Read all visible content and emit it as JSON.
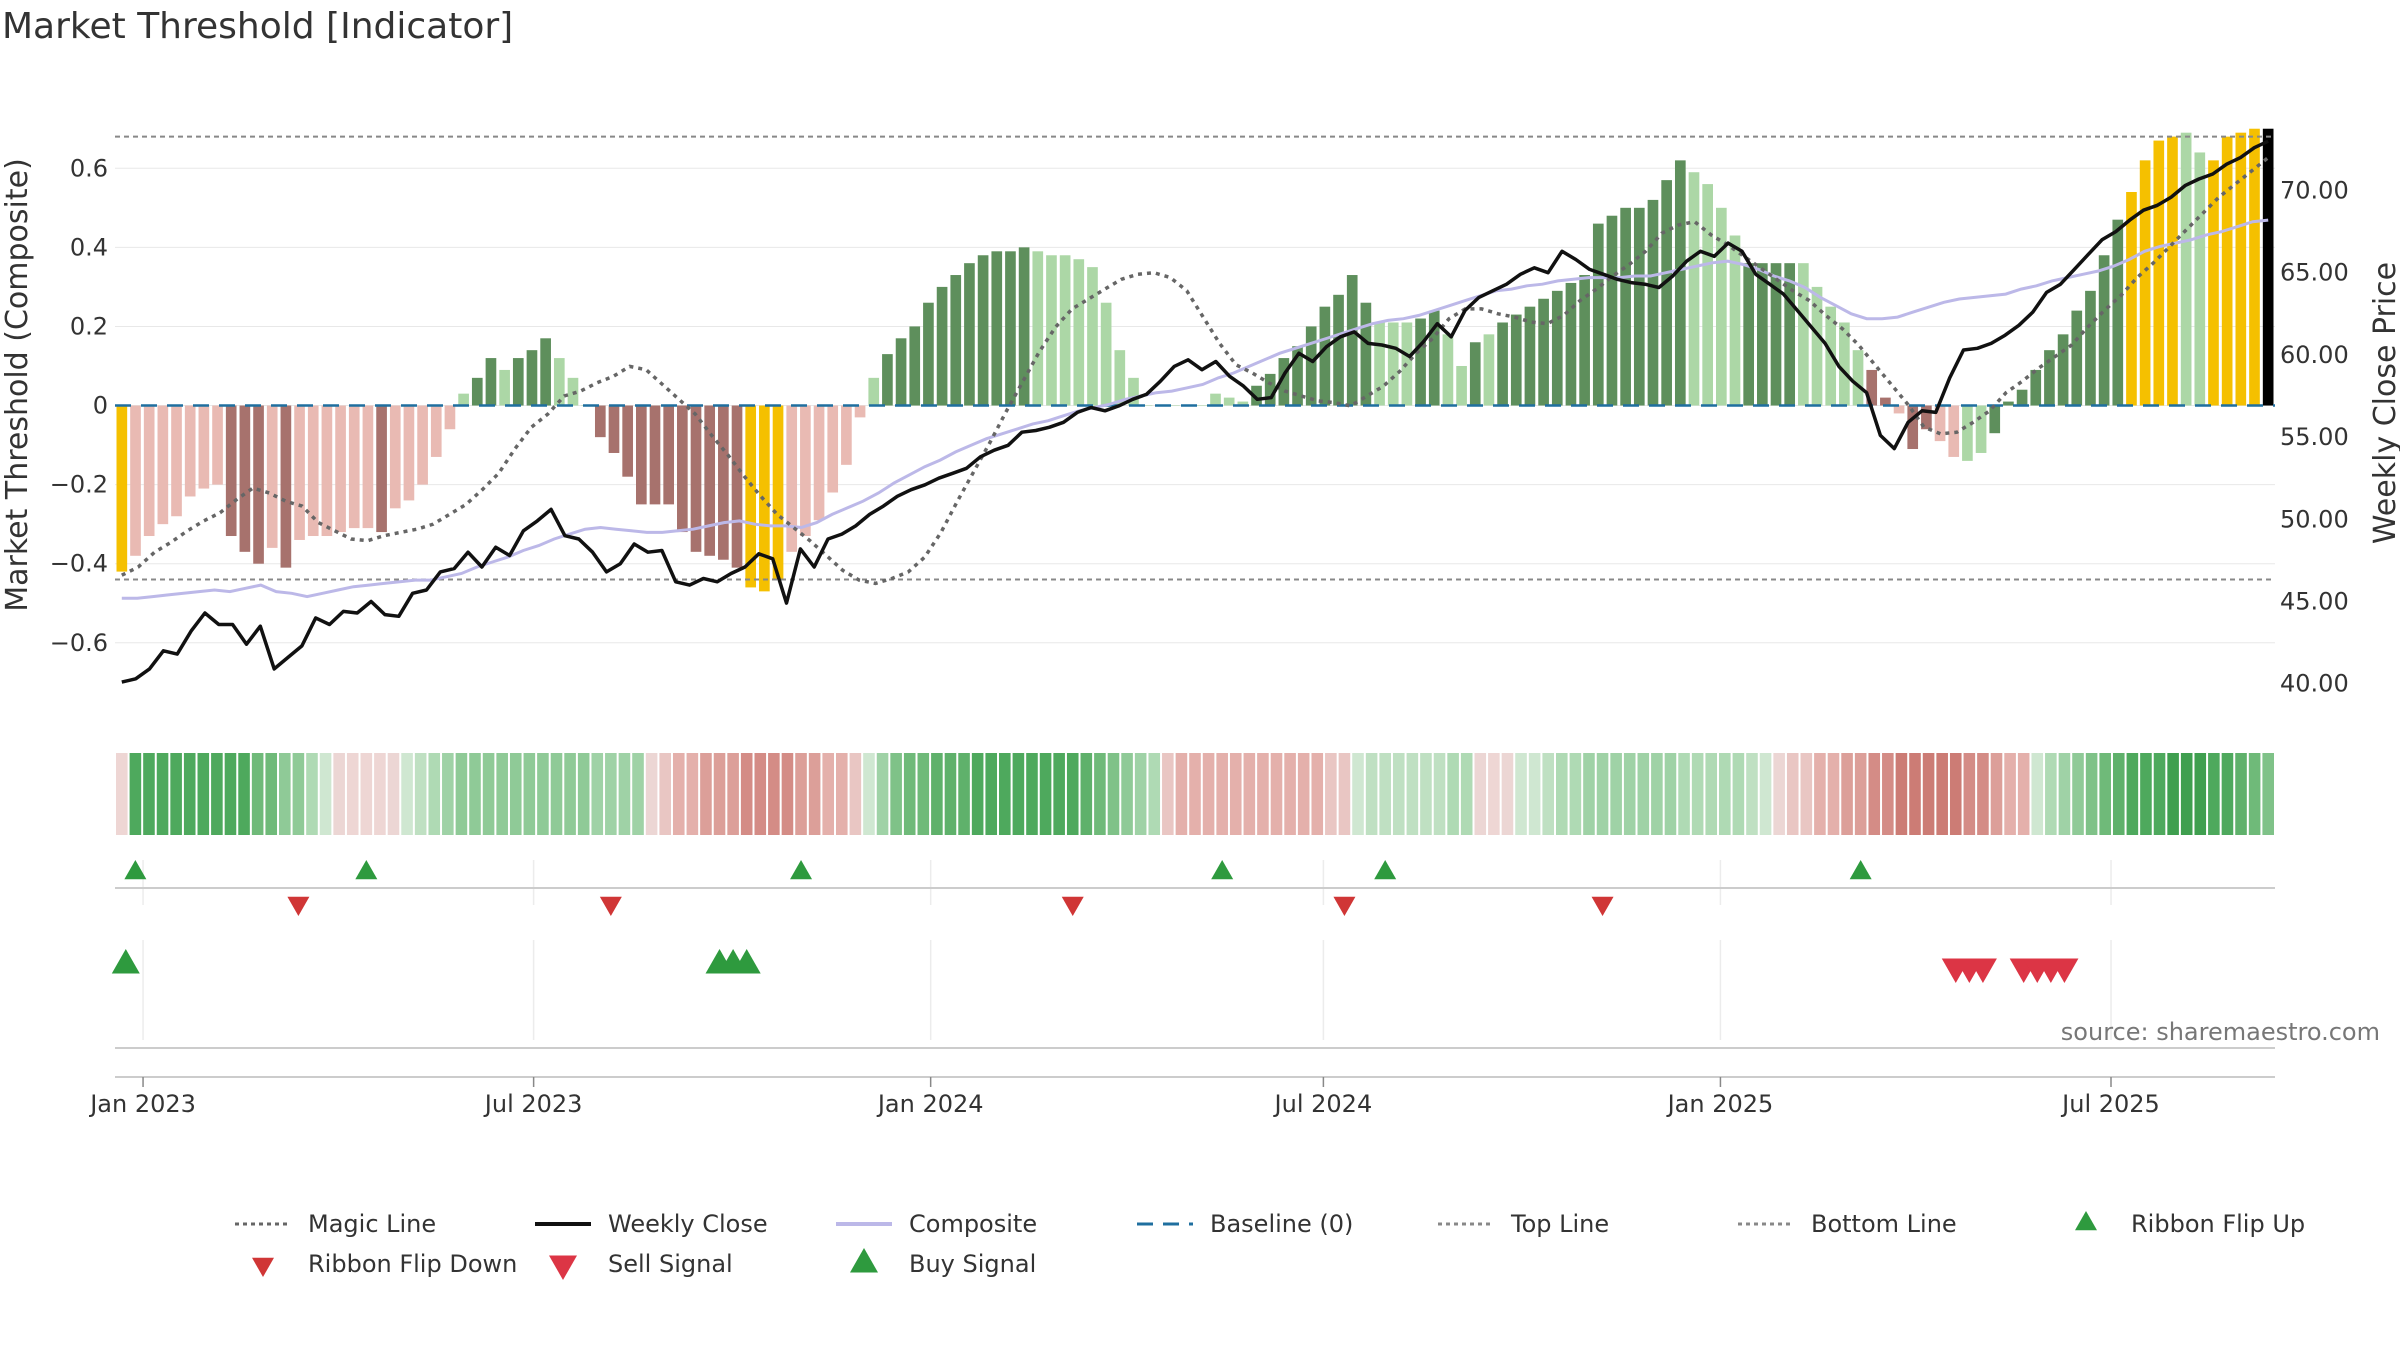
{
  "chart_data": {
    "type": "bar",
    "title": "Market Threshold [Indicator]",
    "ylabel": "Market Threshold (Composite)",
    "y2label": "Weekly Close Price",
    "xlabel": "",
    "ylim": [
      -0.77,
      0.76
    ],
    "y2lim": [
      38.4,
      75.2
    ],
    "y_ticks": [
      {
        "v": 0.6,
        "label": "0.6"
      },
      {
        "v": 0.4,
        "label": "0.4"
      },
      {
        "v": 0.2,
        "label": "0.2"
      },
      {
        "v": 0,
        "label": "0"
      },
      {
        "v": -0.2,
        "label": "−0.2"
      },
      {
        "v": -0.4,
        "label": "−0.4"
      },
      {
        "v": -0.6,
        "label": "−0.6"
      }
    ],
    "y2_ticks": [
      {
        "v": 70,
        "label": "70.00"
      },
      {
        "v": 65,
        "label": "65.00"
      },
      {
        "v": 60,
        "label": "60.00"
      },
      {
        "v": 55,
        "label": "55.00"
      },
      {
        "v": 50,
        "label": "50.00"
      },
      {
        "v": 45,
        "label": "45.00"
      },
      {
        "v": 40,
        "label": "40.00"
      }
    ],
    "x_start": "2022-12-19",
    "x_end": "2025-09-15",
    "x_ticks": [
      {
        "date": "2023-01-01",
        "label": "Jan 2023"
      },
      {
        "date": "2023-07-01",
        "label": "Jul 2023"
      },
      {
        "date": "2024-01-01",
        "label": "Jan 2024"
      },
      {
        "date": "2024-07-01",
        "label": "Jul 2024"
      },
      {
        "date": "2025-01-01",
        "label": "Jan 2025"
      },
      {
        "date": "2025-07-01",
        "label": "Jul 2025"
      }
    ],
    "top_line": 0.68,
    "bottom_line": -0.44,
    "baseline": 0,
    "composite_bars": [
      -0.42,
      -0.38,
      -0.33,
      -0.3,
      -0.28,
      -0.23,
      -0.21,
      -0.2,
      -0.33,
      -0.37,
      -0.4,
      -0.36,
      -0.41,
      -0.34,
      -0.33,
      -0.33,
      -0.32,
      -0.31,
      -0.31,
      -0.32,
      -0.26,
      -0.24,
      -0.2,
      -0.13,
      -0.06,
      0.03,
      0.07,
      0.12,
      0.09,
      0.12,
      0.14,
      0.17,
      0.12,
      0.07,
      0,
      -0.08,
      -0.12,
      -0.18,
      -0.25,
      -0.25,
      -0.25,
      -0.32,
      -0.37,
      -0.38,
      -0.39,
      -0.41,
      -0.46,
      -0.47,
      -0.44,
      -0.37,
      -0.33,
      -0.29,
      -0.22,
      -0.15,
      -0.03,
      0.07,
      0.13,
      0.17,
      0.2,
      0.26,
      0.3,
      0.33,
      0.36,
      0.38,
      0.39,
      0.39,
      0.4,
      0.39,
      0.38,
      0.38,
      0.37,
      0.35,
      0.26,
      0.14,
      0.07,
      0,
      0,
      0,
      0,
      0,
      0.03,
      0.02,
      0.01,
      0.05,
      0.08,
      0.12,
      0.15,
      0.2,
      0.25,
      0.28,
      0.33,
      0.26,
      0.21,
      0.21,
      0.21,
      0.22,
      0.24,
      0.18,
      0.1,
      0.16,
      0.18,
      0.21,
      0.23,
      0.25,
      0.27,
      0.29,
      0.31,
      0.33,
      0.46,
      0.48,
      0.5,
      0.5,
      0.52,
      0.57,
      0.62,
      0.59,
      0.56,
      0.5,
      0.43,
      0.36,
      0.36,
      0.36,
      0.36,
      0.36,
      0.3,
      0.25,
      0.21,
      0.14,
      0.09,
      0.02,
      -0.02,
      -0.11,
      -0.06,
      -0.09,
      -0.13,
      -0.14,
      -0.12,
      -0.07,
      0.01,
      0.04,
      0.09,
      0.14,
      0.18,
      0.24,
      0.29,
      0.38,
      0.47,
      0.54,
      0.62,
      0.67,
      0.68,
      0.69,
      0.64,
      0.62,
      0.68,
      0.69,
      0.7,
      0.7
    ],
    "bar_colors": [
      "gold",
      "lpink",
      "lpink",
      "lpink",
      "lpink",
      "lpink",
      "lpink",
      "lpink",
      "dred",
      "dred",
      "dred",
      "lpink",
      "dred",
      "lpink",
      "lpink",
      "lpink",
      "lpink",
      "lpink",
      "lpink",
      "dred",
      "lpink",
      "lpink",
      "lpink",
      "lpink",
      "lpink",
      "lgreen",
      "dgreen",
      "dgreen",
      "lgreen",
      "dgreen",
      "dgreen",
      "dgreen",
      "lgreen",
      "lgreen",
      "lgreen",
      "dred",
      "dred",
      "dred",
      "dred",
      "dred",
      "dred",
      "dred",
      "dred",
      "dred",
      "dred",
      "dred",
      "gold",
      "gold",
      "gold",
      "lpink",
      "lpink",
      "lpink",
      "lpink",
      "lpink",
      "lpink",
      "lgreen",
      "dgreen",
      "dgreen",
      "dgreen",
      "dgreen",
      "dgreen",
      "dgreen",
      "dgreen",
      "dgreen",
      "dgreen",
      "dgreen",
      "dgreen",
      "lgreen",
      "lgreen",
      "lgreen",
      "lgreen",
      "lgreen",
      "lgreen",
      "lgreen",
      "lgreen",
      "lgreen",
      "lgreen",
      "lgreen",
      "lgreen",
      "lgreen",
      "lgreen",
      "lgreen",
      "lgreen",
      "dgreen",
      "dgreen",
      "dgreen",
      "dgreen",
      "dgreen",
      "dgreen",
      "dgreen",
      "dgreen",
      "dgreen",
      "lgreen",
      "lgreen",
      "lgreen",
      "dgreen",
      "dgreen",
      "lgreen",
      "lgreen",
      "dgreen",
      "lgreen",
      "dgreen",
      "dgreen",
      "dgreen",
      "dgreen",
      "dgreen",
      "dgreen",
      "dgreen",
      "dgreen",
      "dgreen",
      "dgreen",
      "dgreen",
      "dgreen",
      "dgreen",
      "dgreen",
      "lgreen",
      "lgreen",
      "lgreen",
      "lgreen",
      "dgreen",
      "dgreen",
      "dgreen",
      "dgreen",
      "lgreen",
      "lgreen",
      "lgreen",
      "lgreen",
      "lgreen",
      "dred",
      "dred",
      "lpink",
      "dred",
      "dred",
      "lpink",
      "lpink",
      "lgreen",
      "lgreen",
      "dgreen",
      "dgreen",
      "dgreen",
      "dgreen",
      "dgreen",
      "dgreen",
      "dgreen",
      "dgreen",
      "dgreen",
      "dgreen",
      "gold",
      "gold",
      "gold",
      "gold",
      "lgreen",
      "lgreen",
      "gold",
      "gold",
      "gold",
      "gold"
    ],
    "bar_palette": {
      "gold": "#f5c000",
      "lpink": "#e9bab3",
      "dred": "#a7726d",
      "lgreen": "#acd7a6",
      "dgreen": "#5e8f5c"
    },
    "weekly_close": [
      40.1,
      40.3,
      40.9,
      42.0,
      41.8,
      43.2,
      44.3,
      43.6,
      43.6,
      42.4,
      43.5,
      40.9,
      41.6,
      42.3,
      44.0,
      43.6,
      44.4,
      44.3,
      45.0,
      44.2,
      44.1,
      45.5,
      45.7,
      46.8,
      47.0,
      48.0,
      47.1,
      48.3,
      47.8,
      49.3,
      49.9,
      50.6,
      49.0,
      48.8,
      48.0,
      46.8,
      47.3,
      48.5,
      48.0,
      48.1,
      46.2,
      46.0,
      46.4,
      46.2,
      46.7,
      47.1,
      47.9,
      47.6,
      44.9,
      48.2,
      47.1,
      48.8,
      49.1,
      49.6,
      50.3,
      50.8,
      51.4,
      51.8,
      52.1,
      52.5,
      52.8,
      53.1,
      53.8,
      54.2,
      54.5,
      55.3,
      55.4,
      55.6,
      55.9,
      56.5,
      56.8,
      56.6,
      56.9,
      57.3,
      57.6,
      58.4,
      59.3,
      59.7,
      59.1,
      59.6,
      58.7,
      58.1,
      57.3,
      57.4,
      58.9,
      60.1,
      59.6,
      60.5,
      61.1,
      61.4,
      60.7,
      60.6,
      60.4,
      59.9,
      60.8,
      61.9,
      61.1,
      62.7,
      63.5,
      63.9,
      64.3,
      64.9,
      65.3,
      65.0,
      66.3,
      65.8,
      65.2,
      64.9,
      64.6,
      64.4,
      64.3,
      64.1,
      64.8,
      65.7,
      66.3,
      66.0,
      66.8,
      66.3,
      64.9,
      64.3,
      63.7,
      62.7,
      61.7,
      60.7,
      59.3,
      58.4,
      57.7,
      55.1,
      54.3,
      55.9,
      56.6,
      56.5,
      58.6,
      60.3,
      60.4,
      60.7,
      61.2,
      61.8,
      62.6,
      63.8,
      64.3,
      65.2,
      66.1,
      67.0,
      67.5,
      68.2,
      68.8,
      69.1,
      69.6,
      70.3,
      70.7,
      71.0,
      71.6,
      72.0,
      72.6,
      73.0
    ],
    "weekly_close_plot_hint": "price",
    "composite_line": [
      45.2,
      45.2,
      45.3,
      45.4,
      45.5,
      45.6,
      45.7,
      45.6,
      45.8,
      46.0,
      45.6,
      45.5,
      45.3,
      45.5,
      45.7,
      45.9,
      46.0,
      46.1,
      46.2,
      46.3,
      46.3,
      46.5,
      46.7,
      47.1,
      47.4,
      47.7,
      48.1,
      48.4,
      48.8,
      49.1,
      49.4,
      49.5,
      49.4,
      49.3,
      49.2,
      49.2,
      49.3,
      49.4,
      49.6,
      49.8,
      49.9,
      49.7,
      49.6,
      49.6,
      49.5,
      49.8,
      50.3,
      50.7,
      51.1,
      51.6,
      52.2,
      52.7,
      53.2,
      53.6,
      54.1,
      54.5,
      54.9,
      55.2,
      55.5,
      55.8,
      56.0,
      56.3,
      56.6,
      56.8,
      57.0,
      57.3,
      57.5,
      57.7,
      57.8,
      58.0,
      58.2,
      58.6,
      58.9,
      59.3,
      59.7,
      60.1,
      60.4,
      60.7,
      61.0,
      61.3,
      61.6,
      61.9,
      62.1,
      62.2,
      62.4,
      62.7,
      63.0,
      63.3,
      63.6,
      63.9,
      64.0,
      64.2,
      64.3,
      64.5,
      64.6,
      64.7,
      64.7,
      64.7,
      64.8,
      64.8,
      65.0,
      65.2,
      65.4,
      65.6,
      65.7,
      65.5,
      65.2,
      64.8,
      64.5,
      64.1,
      63.5,
      63.0,
      62.5,
      62.2,
      62.2,
      62.3,
      62.6,
      62.9,
      63.2,
      63.4,
      63.5,
      63.6,
      63.7,
      64.0,
      64.2,
      64.5,
      64.7,
      64.9,
      65.1,
      65.4,
      65.8,
      66.3,
      66.6,
      66.8,
      67.0,
      67.3,
      67.5,
      67.8,
      68.1,
      68.2
    ],
    "magic_line": [
      46.6,
      47.1,
      48.0,
      48.6,
      49.3,
      49.9,
      50.4,
      51.2,
      51.9,
      51.6,
      51.1,
      50.8,
      49.8,
      49.3,
      48.8,
      48.7,
      49.0,
      49.2,
      49.4,
      49.7,
      50.3,
      50.9,
      51.8,
      52.8,
      54.3,
      55.6,
      56.4,
      57.5,
      57.8,
      58.3,
      58.7,
      59.3,
      59.1,
      58.2,
      57.3,
      56.4,
      55.1,
      53.9,
      52.6,
      51.4,
      50.3,
      49.5,
      48.7,
      47.8,
      46.9,
      46.3,
      46.1,
      46.4,
      46.8,
      47.7,
      49.2,
      51.1,
      52.9,
      54.7,
      56.6,
      58.4,
      60.2,
      61.7,
      62.8,
      63.4,
      64.0,
      64.6,
      64.9,
      65.0,
      64.7,
      63.9,
      62.3,
      60.7,
      59.4,
      58.9,
      58.3,
      57.8,
      57.5,
      57.2,
      57.1,
      56.9,
      57.5,
      58.1,
      59.0,
      60.1,
      61.0,
      62.2,
      62.8,
      62.8,
      62.5,
      62.3,
      62.0,
      61.9,
      62.4,
      63.3,
      64.0,
      64.8,
      65.5,
      66.3,
      67.4,
      67.9,
      68.1,
      67.3,
      66.7,
      66.0,
      65.3,
      64.6,
      63.9,
      63.3,
      62.4,
      61.6,
      60.6,
      59.4,
      58.2,
      57.0,
      55.6,
      55.2,
      55.3,
      55.9,
      56.6,
      57.7,
      58.4,
      59.2,
      59.9,
      60.6,
      61.7,
      62.7,
      63.6,
      64.7,
      65.6,
      66.6,
      67.6,
      68.6,
      69.6,
      70.4,
      71.2,
      72.0
    ],
    "ribbon_colors": [
      "#eed6d4",
      "#4ea95d",
      "#4ea95d",
      "#4ea95d",
      "#4ea95d",
      "#4ea95d",
      "#4ea95d",
      "#4ea95d",
      "#4ea95d",
      "#4ea95d",
      "#6fba79",
      "#6fba79",
      "#8fca97",
      "#8fca97",
      "#afdab4",
      "#cfe7d1",
      "#ecd6d4",
      "#eed6d4",
      "#eed6d4",
      "#eed6d4",
      "#ecd6d4",
      "#cfe7d1",
      "#bfe0c2",
      "#afdab4",
      "#9fd2a6",
      "#8fca97",
      "#8fca97",
      "#8fca97",
      "#8fca97",
      "#8fca97",
      "#8fca97",
      "#8fca97",
      "#8fca97",
      "#8fca97",
      "#8fca97",
      "#9fd2a6",
      "#9fd2a6",
      "#9fd2a6",
      "#9fd2a6",
      "#ecd6d4",
      "#e9c6c3",
      "#e4b0ab",
      "#e4b0ab",
      "#dc9f99",
      "#dc9f99",
      "#dc9f99",
      "#d48c86",
      "#d48c86",
      "#d48c86",
      "#d48c86",
      "#dc9f99",
      "#dc9f99",
      "#e4b0ab",
      "#e4b0ab",
      "#e9c6c3",
      "#cfe7d1",
      "#9fd2a6",
      "#7fc288",
      "#6fba79",
      "#6fba79",
      "#5fb16b",
      "#5fb16b",
      "#5fb16b",
      "#4ea95d",
      "#4ea95d",
      "#4ea95d",
      "#4ea95d",
      "#4ea95d",
      "#4ea95d",
      "#4ea95d",
      "#4ea95d",
      "#5fb16b",
      "#6fba79",
      "#7fc288",
      "#8fca97",
      "#9fd2a6",
      "#afdab4",
      "#e9c6c3",
      "#e4b0ab",
      "#e4b0ab",
      "#e4b0ab",
      "#e4b0ab",
      "#e4b0ab",
      "#e4b0ab",
      "#e4b0ab",
      "#e4b0ab",
      "#e4b0ab",
      "#e4b0ab",
      "#e4b0ab",
      "#e9c6c3",
      "#e9c6c3",
      "#cfe7d1",
      "#bfe0c2",
      "#bfe0c2",
      "#bfe0c2",
      "#bfe0c2",
      "#bfe0c2",
      "#bfe0c2",
      "#afdab4",
      "#afdab4",
      "#ecd6d4",
      "#eed6d4",
      "#ecd6d4",
      "#cfe7d1",
      "#cfe7d1",
      "#bfe0c2",
      "#afdab4",
      "#afdab4",
      "#9fd2a6",
      "#9fd2a6",
      "#9fd2a6",
      "#9fd2a6",
      "#9fd2a6",
      "#9fd2a6",
      "#9fd2a6",
      "#afdab4",
      "#afdab4",
      "#afdab4",
      "#afdab4",
      "#afdab4",
      "#bfe0c2",
      "#cfe7d1",
      "#ecd6d4",
      "#e9c6c3",
      "#e9c6c3",
      "#e4b0ab",
      "#e4b0ab",
      "#dc9f99",
      "#dc9f99",
      "#d48c86",
      "#d48c86",
      "#cc7c75",
      "#cc7c75",
      "#cc7c75",
      "#cc7c75",
      "#cc7c75",
      "#d48c86",
      "#d48c86",
      "#dc9f99",
      "#e4b0ab",
      "#e4b0ab",
      "#cfe7d1",
      "#afdab4",
      "#9fd2a6",
      "#8fca97",
      "#7fc288",
      "#6fba79",
      "#5fb16b",
      "#4ea95d",
      "#4ea95d",
      "#4ea95d",
      "#3f9f4f",
      "#3f9f4f",
      "#3f9f4f",
      "#4ea95d",
      "#4ea95d",
      "#5fb16b",
      "#6fba79",
      "#7fc288"
    ],
    "ribbon_flip_up": [
      1,
      18,
      50,
      81,
      93,
      128
    ],
    "ribbon_flip_down": [
      13,
      36,
      70,
      90,
      109
    ],
    "buy_signal": [
      0,
      44,
      45,
      46
    ],
    "sell_signal": [
      135,
      136,
      137,
      140,
      141,
      142,
      143
    ],
    "colors": {
      "magic_line": "#666666",
      "weekly_close": "#111111",
      "composite": "#bcb8e8",
      "baseline": "#1f6f9f",
      "top_line": "#888888",
      "bottom_line": "#888888",
      "flip_up": "#2e9a3e",
      "flip_down": "#d03636",
      "sell": "#dc3545",
      "buy": "#2e9a3e"
    },
    "legend": [
      {
        "label": "Magic Line",
        "kind": "dotted",
        "color": "#666666"
      },
      {
        "label": "Weekly Close",
        "kind": "solid",
        "color": "#111111"
      },
      {
        "label": "Composite",
        "kind": "solid",
        "color": "#bcb8e8"
      },
      {
        "label": "Baseline (0)",
        "kind": "dashed",
        "color": "#1f6f9f"
      },
      {
        "label": "Top Line",
        "kind": "dotted",
        "color": "#888888"
      },
      {
        "label": "Bottom Line",
        "kind": "dotted",
        "color": "#888888"
      },
      {
        "label": "Ribbon Flip Up",
        "kind": "tri-up",
        "color": "#2e9a3e"
      },
      {
        "label": "Ribbon Flip Down",
        "kind": "tri-down",
        "color": "#d03636"
      },
      {
        "label": "Sell Signal",
        "kind": "tri-down-big",
        "color": "#dc3545"
      },
      {
        "label": "Buy Signal",
        "kind": "tri-up-big",
        "color": "#2e9a3e"
      }
    ],
    "legend_position": "bottom",
    "grid": true,
    "source": "source: sharemaestro.com"
  }
}
